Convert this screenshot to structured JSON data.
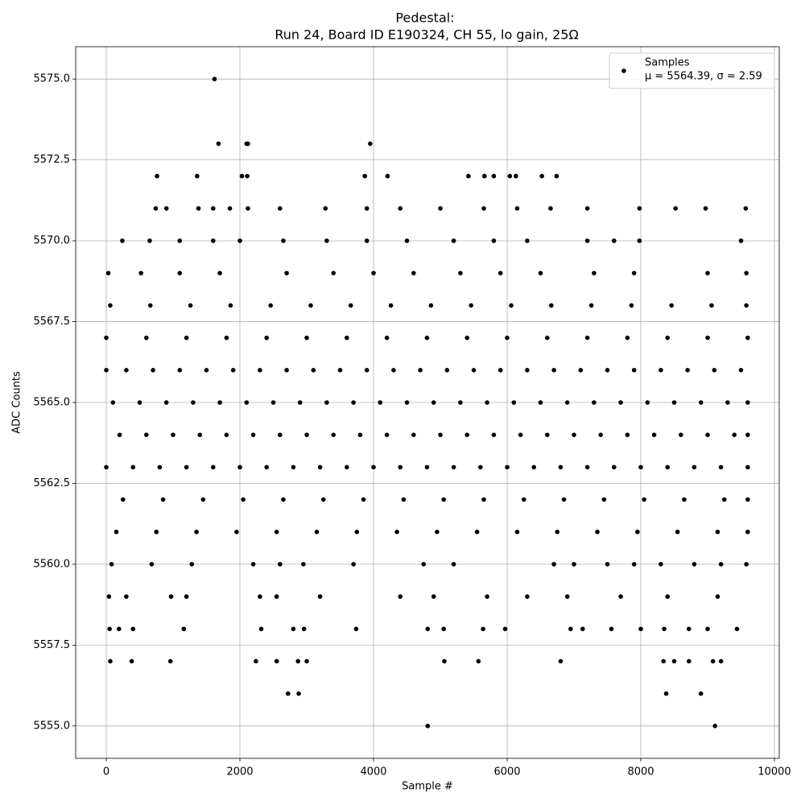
{
  "chart_data": {
    "type": "scatter",
    "title": "Pedestal:",
    "subtitle": "Run 24, Board ID E190324, CH 55, lo gain, 25Ω",
    "x_label": "Sample #",
    "y_label": "ADC Counts",
    "xlim": [
      -458,
      10072
    ],
    "ylim": [
      5554,
      5576
    ],
    "xticks": [
      0,
      2000,
      4000,
      6000,
      8000,
      10000
    ],
    "yticks": [
      {
        "value": 5555,
        "label": "5555.0"
      },
      {
        "value": 5557.5,
        "label": "5557.5"
      },
      {
        "value": 5560,
        "label": "5560.0"
      },
      {
        "value": 5562.5,
        "label": "5562.5"
      },
      {
        "value": 5565,
        "label": "5565.0"
      },
      {
        "value": 5567.5,
        "label": "5567.5"
      },
      {
        "value": 5570,
        "label": "5570.0"
      },
      {
        "value": 5572.5,
        "label": "5572.5"
      },
      {
        "value": 5575,
        "label": "5575.0"
      }
    ],
    "grid": true,
    "legend_position": "upper right",
    "legend_text": "μ = 5564.39, σ = 2.59",
    "series": [
      {
        "name": "Samples",
        "color": "#000000",
        "points": [
          [
            0,
            5563
          ],
          [
            400,
            5563
          ],
          [
            800,
            5563
          ],
          [
            1200,
            5563
          ],
          [
            1600,
            5563
          ],
          [
            2000,
            5563
          ],
          [
            2400,
            5563
          ],
          [
            2800,
            5563
          ],
          [
            3200,
            5563
          ],
          [
            3600,
            5563
          ],
          [
            4000,
            5563
          ],
          [
            4400,
            5563
          ],
          [
            4800,
            5563
          ],
          [
            5200,
            5563
          ],
          [
            5600,
            5563
          ],
          [
            6000,
            5563
          ],
          [
            6400,
            5563
          ],
          [
            6800,
            5563
          ],
          [
            7200,
            5563
          ],
          [
            7600,
            5563
          ],
          [
            8000,
            5563
          ],
          [
            8400,
            5563
          ],
          [
            8800,
            5563
          ],
          [
            9200,
            5563
          ],
          [
            9600,
            5563
          ],
          [
            200,
            5564
          ],
          [
            600,
            5564
          ],
          [
            1000,
            5564
          ],
          [
            1400,
            5564
          ],
          [
            1800,
            5564
          ],
          [
            2200,
            5564
          ],
          [
            2600,
            5564
          ],
          [
            3000,
            5564
          ],
          [
            3400,
            5564
          ],
          [
            3800,
            5564
          ],
          [
            4200,
            5564
          ],
          [
            4600,
            5564
          ],
          [
            5000,
            5564
          ],
          [
            5400,
            5564
          ],
          [
            5800,
            5564
          ],
          [
            6200,
            5564
          ],
          [
            6600,
            5564
          ],
          [
            7000,
            5564
          ],
          [
            7400,
            5564
          ],
          [
            7800,
            5564
          ],
          [
            8200,
            5564
          ],
          [
            8600,
            5564
          ],
          [
            9000,
            5564
          ],
          [
            9400,
            5564
          ],
          [
            9600,
            5564
          ],
          [
            100,
            5565
          ],
          [
            500,
            5565
          ],
          [
            900,
            5565
          ],
          [
            1300,
            5565
          ],
          [
            1700,
            5565
          ],
          [
            2100,
            5565
          ],
          [
            2500,
            5565
          ],
          [
            2900,
            5565
          ],
          [
            3300,
            5565
          ],
          [
            3700,
            5565
          ],
          [
            4100,
            5565
          ],
          [
            4500,
            5565
          ],
          [
            4900,
            5565
          ],
          [
            5300,
            5565
          ],
          [
            5700,
            5565
          ],
          [
            6100,
            5565
          ],
          [
            6500,
            5565
          ],
          [
            6900,
            5565
          ],
          [
            7300,
            5565
          ],
          [
            7700,
            5565
          ],
          [
            8100,
            5565
          ],
          [
            8500,
            5565
          ],
          [
            8900,
            5565
          ],
          [
            9300,
            5565
          ],
          [
            9600,
            5565
          ],
          [
            0,
            5566
          ],
          [
            300,
            5566
          ],
          [
            700,
            5566
          ],
          [
            1100,
            5566
          ],
          [
            1500,
            5566
          ],
          [
            1900,
            5566
          ],
          [
            2300,
            5566
          ],
          [
            2700,
            5566
          ],
          [
            3100,
            5566
          ],
          [
            3500,
            5566
          ],
          [
            3900,
            5566
          ],
          [
            4300,
            5566
          ],
          [
            4700,
            5566
          ],
          [
            5100,
            5566
          ],
          [
            5500,
            5566
          ],
          [
            5900,
            5566
          ],
          [
            6300,
            5566
          ],
          [
            6700,
            5566
          ],
          [
            7100,
            5566
          ],
          [
            7500,
            5566
          ],
          [
            7900,
            5566
          ],
          [
            8300,
            5566
          ],
          [
            8700,
            5566
          ],
          [
            9100,
            5566
          ],
          [
            9500,
            5566
          ],
          [
            0,
            5567
          ],
          [
            600,
            5567
          ],
          [
            1200,
            5567
          ],
          [
            1800,
            5567
          ],
          [
            2400,
            5567
          ],
          [
            3000,
            5567
          ],
          [
            3600,
            5567
          ],
          [
            4200,
            5567
          ],
          [
            4800,
            5567
          ],
          [
            5400,
            5567
          ],
          [
            6000,
            5567
          ],
          [
            6600,
            5567
          ],
          [
            7200,
            5567
          ],
          [
            7800,
            5567
          ],
          [
            8400,
            5567
          ],
          [
            9000,
            5567
          ],
          [
            9600,
            5567
          ],
          [
            250,
            5562
          ],
          [
            850,
            5562
          ],
          [
            1450,
            5562
          ],
          [
            2050,
            5562
          ],
          [
            2650,
            5562
          ],
          [
            3250,
            5562
          ],
          [
            3850,
            5562
          ],
          [
            4450,
            5562
          ],
          [
            5050,
            5562
          ],
          [
            5650,
            5562
          ],
          [
            6250,
            5562
          ],
          [
            6850,
            5562
          ],
          [
            7450,
            5562
          ],
          [
            8050,
            5562
          ],
          [
            8650,
            5562
          ],
          [
            9250,
            5562
          ],
          [
            9600,
            5562
          ],
          [
            150,
            5561
          ],
          [
            750,
            5561
          ],
          [
            1350,
            5561
          ],
          [
            1950,
            5561
          ],
          [
            2550,
            5561
          ],
          [
            3150,
            5561
          ],
          [
            3750,
            5561
          ],
          [
            4350,
            5561
          ],
          [
            4950,
            5561
          ],
          [
            5550,
            5561
          ],
          [
            6150,
            5561
          ],
          [
            6750,
            5561
          ],
          [
            7350,
            5561
          ],
          [
            7950,
            5561
          ],
          [
            8550,
            5561
          ],
          [
            9150,
            5561
          ],
          [
            9600,
            5561
          ],
          [
            60,
            5568
          ],
          [
            660,
            5568
          ],
          [
            1260,
            5568
          ],
          [
            1860,
            5568
          ],
          [
            2460,
            5568
          ],
          [
            3060,
            5568
          ],
          [
            3660,
            5568
          ],
          [
            4260,
            5568
          ],
          [
            4860,
            5568
          ],
          [
            5460,
            5568
          ],
          [
            6060,
            5568
          ],
          [
            6660,
            5568
          ],
          [
            7260,
            5568
          ],
          [
            7860,
            5568
          ],
          [
            8460,
            5568
          ],
          [
            9060,
            5568
          ],
          [
            9580,
            5568
          ],
          [
            80,
            5560
          ],
          [
            680,
            5560
          ],
          [
            1280,
            5560
          ],
          [
            2200,
            5560
          ],
          [
            2600,
            5560
          ],
          [
            2950,
            5560
          ],
          [
            3700,
            5560
          ],
          [
            4750,
            5560
          ],
          [
            5200,
            5560
          ],
          [
            6700,
            5560
          ],
          [
            7000,
            5560
          ],
          [
            7500,
            5560
          ],
          [
            7900,
            5560
          ],
          [
            8300,
            5560
          ],
          [
            8800,
            5560
          ],
          [
            9200,
            5560
          ],
          [
            9580,
            5560
          ],
          [
            30,
            5569
          ],
          [
            520,
            5569
          ],
          [
            1100,
            5569
          ],
          [
            1700,
            5569
          ],
          [
            2700,
            5569
          ],
          [
            3400,
            5569
          ],
          [
            4000,
            5569
          ],
          [
            4600,
            5569
          ],
          [
            5300,
            5569
          ],
          [
            5900,
            5569
          ],
          [
            6500,
            5569
          ],
          [
            7300,
            5569
          ],
          [
            7900,
            5569
          ],
          [
            9000,
            5569
          ],
          [
            9580,
            5569
          ],
          [
            40,
            5559
          ],
          [
            300,
            5559
          ],
          [
            970,
            5559
          ],
          [
            1200,
            5559
          ],
          [
            2300,
            5559
          ],
          [
            2550,
            5559
          ],
          [
            3200,
            5559
          ],
          [
            4400,
            5559
          ],
          [
            4900,
            5559
          ],
          [
            5700,
            5559
          ],
          [
            6300,
            5559
          ],
          [
            6900,
            5559
          ],
          [
            7700,
            5559
          ],
          [
            8400,
            5559
          ],
          [
            9150,
            5559
          ],
          [
            240,
            5570
          ],
          [
            650,
            5570
          ],
          [
            1100,
            5570
          ],
          [
            1600,
            5570
          ],
          [
            2000,
            5570
          ],
          [
            2650,
            5570
          ],
          [
            3300,
            5570
          ],
          [
            3900,
            5570
          ],
          [
            4500,
            5570
          ],
          [
            5200,
            5570
          ],
          [
            5800,
            5570
          ],
          [
            6300,
            5570
          ],
          [
            7200,
            5570
          ],
          [
            7600,
            5570
          ],
          [
            7980,
            5570
          ],
          [
            9500,
            5570
          ],
          [
            740,
            5571
          ],
          [
            900,
            5571
          ],
          [
            1380,
            5571
          ],
          [
            1600,
            5571
          ],
          [
            1850,
            5571
          ],
          [
            2120,
            5571
          ],
          [
            2600,
            5571
          ],
          [
            3280,
            5571
          ],
          [
            3900,
            5571
          ],
          [
            4400,
            5571
          ],
          [
            5000,
            5571
          ],
          [
            5650,
            5571
          ],
          [
            6150,
            5571
          ],
          [
            6650,
            5571
          ],
          [
            7200,
            5571
          ],
          [
            7980,
            5571
          ],
          [
            8520,
            5571
          ],
          [
            8970,
            5571
          ],
          [
            9570,
            5571
          ],
          [
            50,
            5558
          ],
          [
            190,
            5558
          ],
          [
            400,
            5558
          ],
          [
            1160,
            5558
          ],
          [
            2320,
            5558
          ],
          [
            2800,
            5558
          ],
          [
            2960,
            5558
          ],
          [
            3740,
            5558
          ],
          [
            4810,
            5558
          ],
          [
            5050,
            5558
          ],
          [
            5640,
            5558
          ],
          [
            5970,
            5558
          ],
          [
            6950,
            5558
          ],
          [
            7130,
            5558
          ],
          [
            7560,
            5558
          ],
          [
            8000,
            5558
          ],
          [
            8350,
            5558
          ],
          [
            8720,
            5558
          ],
          [
            9000,
            5558
          ],
          [
            9440,
            5558
          ],
          [
            760,
            5572
          ],
          [
            1360,
            5572
          ],
          [
            2030,
            5572
          ],
          [
            2110,
            5572
          ],
          [
            3870,
            5572
          ],
          [
            4210,
            5572
          ],
          [
            5420,
            5572
          ],
          [
            5660,
            5572
          ],
          [
            5800,
            5572
          ],
          [
            6040,
            5572
          ],
          [
            6130,
            5572
          ],
          [
            6520,
            5572
          ],
          [
            6740,
            5572
          ],
          [
            60,
            5557
          ],
          [
            380,
            5557
          ],
          [
            960,
            5557
          ],
          [
            2240,
            5557
          ],
          [
            2550,
            5557
          ],
          [
            2870,
            5557
          ],
          [
            3000,
            5557
          ],
          [
            5060,
            5557
          ],
          [
            5570,
            5557
          ],
          [
            6800,
            5557
          ],
          [
            8340,
            5557
          ],
          [
            8500,
            5557
          ],
          [
            8720,
            5557
          ],
          [
            9080,
            5557
          ],
          [
            9200,
            5557
          ],
          [
            1620,
            5575
          ],
          [
            1680,
            5573
          ],
          [
            2100,
            5573
          ],
          [
            2120,
            5573
          ],
          [
            3950,
            5573
          ],
          [
            2720,
            5556
          ],
          [
            2880,
            5556
          ],
          [
            8380,
            5556
          ],
          [
            8900,
            5556
          ],
          [
            4810,
            5555
          ],
          [
            9110,
            5555
          ]
        ]
      }
    ]
  }
}
